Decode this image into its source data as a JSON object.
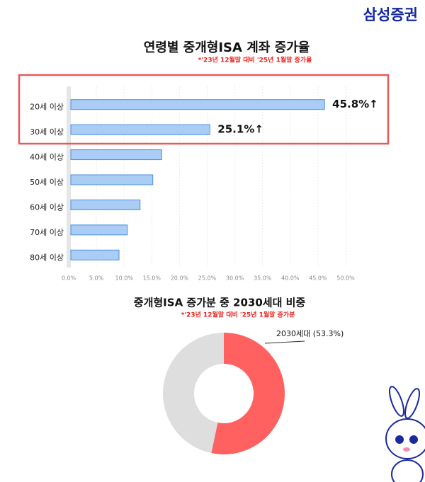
{
  "brand": "삼성증권",
  "chart_data": [
    {
      "type": "hbar",
      "title": "연령별 중개형ISA 계좌 증가율",
      "subtitle": "*'23년 12월말 대비 '25년 1월말 증가율",
      "categories": [
        "20세 이상",
        "30세 이상",
        "40세 이상",
        "50세 이상",
        "60세 이상",
        "70세 이상",
        "80세 이상"
      ],
      "values": [
        45.8,
        25.1,
        16.4,
        14.8,
        12.5,
        10.2,
        8.7
      ],
      "value_labels": [
        "45.8%↑",
        "25.1%↑",
        null,
        null,
        null,
        null,
        null
      ],
      "color": "#a9cdf5",
      "edge_color": "#4a8fe0",
      "xlim": [
        0,
        50
      ],
      "xticks": [
        {
          "value": 0,
          "label": "0.0%"
        },
        {
          "value": 5,
          "label": "5.0%"
        },
        {
          "value": 10,
          "label": "10.0%"
        },
        {
          "value": 15,
          "label": "15.0%"
        },
        {
          "value": 20,
          "label": "20.0%"
        },
        {
          "value": 25,
          "label": "25.0%"
        },
        {
          "value": 30,
          "label": "30.0%"
        },
        {
          "value": 35,
          "label": "35.0%"
        },
        {
          "value": 40,
          "label": "40.0%"
        },
        {
          "value": 45,
          "label": "45.0%"
        },
        {
          "value": 50,
          "label": "50.0%"
        }
      ],
      "grid": true
    },
    {
      "type": "donut",
      "title": "중개형ISA 증가분 중 2030세대 비중",
      "subtitle": "*'23년 12월말 대비 '25년 1월말 증가분",
      "categories": [
        "2030세대",
        null
      ],
      "values": [
        53.3,
        46.7
      ],
      "value_labels": [
        "2030세대 (53.3%)",
        null
      ],
      "colors": [
        "#ff6161",
        "#dedede"
      ]
    }
  ]
}
